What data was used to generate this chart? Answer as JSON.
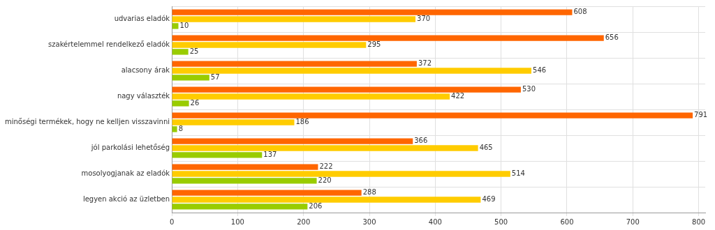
{
  "chart_data": {
    "type": "bar",
    "orientation": "horizontal",
    "categories": [
      "udvarias eladók",
      "szakértelemmel rendelkező eladók",
      "alacsony árak",
      "nagy választék",
      "minőségi termékek, hogy ne kelljen visszavinni",
      "jól parkolási lehetőség",
      "mosolyogjanak az eladók",
      "legyen akció az üzletben"
    ],
    "series": [
      {
        "color": "#ff6600",
        "values": [
          608,
          656,
          372,
          530,
          791,
          366,
          222,
          288
        ]
      },
      {
        "color": "#ffcc00",
        "values": [
          370,
          295,
          546,
          422,
          186,
          465,
          514,
          469
        ]
      },
      {
        "color": "#99cc00",
        "values": [
          10,
          25,
          57,
          26,
          8,
          137,
          220,
          206
        ]
      }
    ],
    "xlim": [
      0,
      810
    ],
    "xticks": [
      0,
      100,
      200,
      300,
      400,
      500,
      600,
      700,
      800
    ],
    "grid": true,
    "legend": false,
    "data_labels": true
  }
}
